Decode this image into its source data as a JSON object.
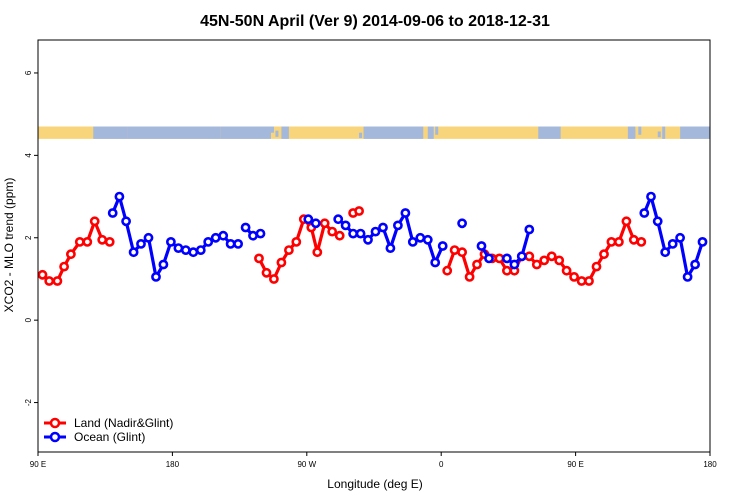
{
  "chart_data": {
    "type": "line",
    "title": "45N-50N April (Ver 9)   2014-09-06 to 2018-12-31",
    "xlabel": "Longitude (deg E)",
    "ylabel": "XCO2 - MLO trend (ppm)",
    "x_ticks": [
      {
        "pos": 90,
        "label": "90 E"
      },
      {
        "pos": 180,
        "label": "180"
      },
      {
        "pos": 270,
        "label": "90 W"
      },
      {
        "pos": 360,
        "label": "0"
      },
      {
        "pos": 450,
        "label": "90 E"
      },
      {
        "pos": 540,
        "label": "180"
      }
    ],
    "y_ticks": [
      {
        "value": -2,
        "label": "-2"
      },
      {
        "value": 0,
        "label": "0"
      },
      {
        "value": 2,
        "label": "2"
      },
      {
        "value": 4,
        "label": "4"
      },
      {
        "value": 6,
        "label": "6"
      }
    ],
    "xlim": [
      90,
      540
    ],
    "ylim": [
      -3.2,
      6.8
    ],
    "land_ocean_strip": {
      "y_range": [
        4.4,
        4.7
      ],
      "land_color": "#f8d57a",
      "ocean_color": "#a4b8dc"
    },
    "legend_position": "bottom-left",
    "series": [
      {
        "name": "Land (Nadir&Glint)",
        "color": "#ff0000",
        "segments": [
          [
            [
              93,
              1.1
            ],
            [
              97.5,
              0.95
            ],
            [
              103,
              0.95
            ],
            [
              107.5,
              1.3
            ],
            [
              112,
              1.6
            ],
            [
              118,
              1.9
            ],
            [
              123,
              1.9
            ],
            [
              128,
              2.4
            ],
            [
              133,
              1.95
            ],
            [
              138,
              1.9
            ]
          ],
          [
            [
              238,
              1.5
            ],
            [
              243,
              1.15
            ],
            [
              248,
              1.0
            ],
            [
              253,
              1.4
            ],
            [
              258,
              1.7
            ],
            [
              263,
              1.9
            ],
            [
              268,
              2.45
            ],
            [
              273,
              2.25
            ],
            [
              277,
              1.65
            ],
            [
              282,
              2.35
            ],
            [
              287,
              2.15
            ],
            [
              292,
              2.05
            ]
          ],
          [
            [
              301,
              2.6
            ],
            [
              305,
              2.65
            ]
          ],
          [
            [
              364,
              1.2
            ],
            [
              369,
              1.7
            ],
            [
              374,
              1.65
            ],
            [
              379,
              1.05
            ],
            [
              384,
              1.35
            ],
            [
              389,
              1.6
            ],
            [
              394,
              1.5
            ],
            [
              399,
              1.5
            ],
            [
              404,
              1.2
            ],
            [
              409,
              1.2
            ],
            [
              414,
              1.55
            ],
            [
              419,
              1.55
            ],
            [
              424,
              1.35
            ],
            [
              429,
              1.45
            ],
            [
              434,
              1.55
            ],
            [
              439,
              1.45
            ],
            [
              444,
              1.2
            ],
            [
              449,
              1.05
            ],
            [
              454,
              0.95
            ],
            [
              459,
              0.95
            ],
            [
              464,
              1.3
            ],
            [
              469,
              1.6
            ],
            [
              474,
              1.9
            ],
            [
              479,
              1.9
            ],
            [
              484,
              2.4
            ],
            [
              489,
              1.95
            ],
            [
              494,
              1.9
            ]
          ]
        ]
      },
      {
        "name": "Ocean (Glint)",
        "color": "#0000ff",
        "segments": [
          [
            [
              140,
              2.6
            ],
            [
              144.5,
              3.0
            ],
            [
              149,
              2.4
            ],
            [
              154,
              1.65
            ],
            [
              159,
              1.85
            ],
            [
              164,
              2.0
            ],
            [
              169,
              1.05
            ],
            [
              174,
              1.35
            ],
            [
              179,
              1.9
            ],
            [
              184,
              1.75
            ],
            [
              189,
              1.7
            ],
            [
              194,
              1.65
            ],
            [
              199,
              1.7
            ],
            [
              204,
              1.9
            ],
            [
              209,
              2.0
            ],
            [
              214,
              2.05
            ],
            [
              219,
              1.85
            ],
            [
              224,
              1.85
            ]
          ],
          [
            [
              229,
              2.25
            ],
            [
              234,
              2.05
            ],
            [
              239,
              2.1
            ]
          ],
          [
            [
              271,
              2.45
            ],
            [
              276,
              2.35
            ]
          ],
          [
            [
              291,
              2.45
            ],
            [
              296,
              2.3
            ],
            [
              301,
              2.1
            ],
            [
              306,
              2.1
            ],
            [
              311,
              1.95
            ],
            [
              316,
              2.15
            ],
            [
              321,
              2.25
            ],
            [
              326,
              1.75
            ],
            [
              331,
              2.3
            ],
            [
              336,
              2.6
            ],
            [
              341,
              1.9
            ],
            [
              346,
              2.0
            ],
            [
              351,
              1.95
            ],
            [
              356,
              1.4
            ],
            [
              361,
              1.8
            ]
          ],
          [
            [
              374,
              2.35
            ]
          ],
          [
            [
              387,
              1.8
            ],
            [
              392,
              1.5
            ]
          ],
          [
            [
              404,
              1.5
            ],
            [
              409,
              1.35
            ],
            [
              414,
              1.55
            ],
            [
              419,
              2.2
            ]
          ],
          [
            [
              496,
              2.6
            ],
            [
              500.5,
              3.0
            ],
            [
              505,
              2.4
            ],
            [
              510,
              1.65
            ],
            [
              515,
              1.85
            ],
            [
              520,
              2.0
            ],
            [
              525,
              1.05
            ],
            [
              530,
              1.35
            ],
            [
              535,
              1.9
            ]
          ]
        ]
      }
    ]
  }
}
